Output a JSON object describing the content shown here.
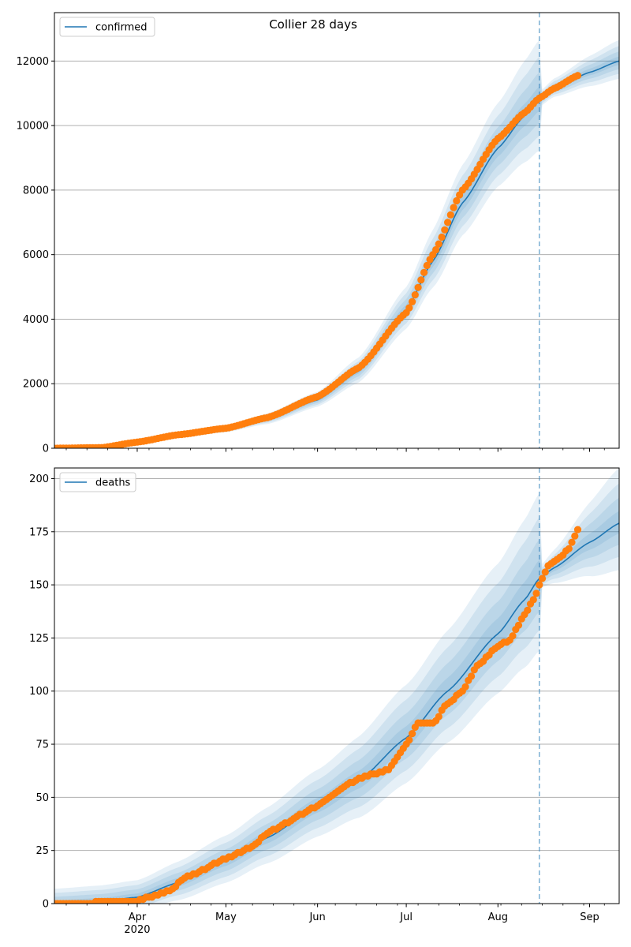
{
  "title": "Collier 28 days",
  "colors": {
    "model": "#1f77b4",
    "observed": "#ff7f0e",
    "band": "#1f77b4",
    "grid": "#b0b0b0",
    "cutoff": "#1f77b4"
  },
  "x_axis": {
    "start": "2020-03-04",
    "end": "2020-09-11",
    "month_ticks": [
      {
        "date": "2020-04-01",
        "label": "Apr",
        "sub": "2020"
      },
      {
        "date": "2020-05-01",
        "label": "May",
        "sub": ""
      },
      {
        "date": "2020-06-01",
        "label": "Jun",
        "sub": ""
      },
      {
        "date": "2020-07-01",
        "label": "Jul",
        "sub": ""
      },
      {
        "date": "2020-08-01",
        "label": "Aug",
        "sub": ""
      },
      {
        "date": "2020-09-01",
        "label": "Sep",
        "sub": ""
      }
    ]
  },
  "chart_data": [
    {
      "type": "line",
      "legend": "confirmed",
      "legend_position": "top-left",
      "grid": "horizontal",
      "ylim": [
        0,
        13500
      ],
      "yticks": [
        0,
        2000,
        4000,
        6000,
        8000,
        10000,
        12000
      ],
      "cutoff_date": "2020-08-15",
      "last_observed": "2020-08-28",
      "model_anchors": [
        [
          "2020-03-04",
          0
        ],
        [
          "2020-03-20",
          10
        ],
        [
          "2020-04-01",
          180
        ],
        [
          "2020-04-15",
          400
        ],
        [
          "2020-05-01",
          600
        ],
        [
          "2020-05-15",
          900
        ],
        [
          "2020-06-01",
          1500
        ],
        [
          "2020-06-15",
          2400
        ],
        [
          "2020-07-01",
          4300
        ],
        [
          "2020-07-10",
          5800
        ],
        [
          "2020-07-20",
          7600
        ],
        [
          "2020-08-01",
          9300
        ],
        [
          "2020-08-10",
          10300
        ],
        [
          "2020-08-15",
          10800
        ],
        [
          "2020-08-20",
          11150
        ],
        [
          "2020-09-01",
          11650
        ],
        [
          "2020-09-11",
          12000
        ]
      ],
      "observed_anchors": [
        [
          "2020-03-04",
          0
        ],
        [
          "2020-03-20",
          20
        ],
        [
          "2020-04-01",
          190
        ],
        [
          "2020-04-15",
          420
        ],
        [
          "2020-05-01",
          620
        ],
        [
          "2020-05-15",
          950
        ],
        [
          "2020-06-01",
          1600
        ],
        [
          "2020-06-15",
          2500
        ],
        [
          "2020-07-01",
          4200
        ],
        [
          "2020-07-10",
          6000
        ],
        [
          "2020-07-20",
          8000
        ],
        [
          "2020-08-01",
          9600
        ],
        [
          "2020-08-10",
          10400
        ],
        [
          "2020-08-15",
          10850
        ],
        [
          "2020-08-20",
          11150
        ],
        [
          "2020-08-28",
          11550
        ]
      ],
      "band_widths": [
        [
          "2020-03-04",
          50
        ],
        [
          "2020-04-01",
          80
        ],
        [
          "2020-05-01",
          120
        ],
        [
          "2020-06-01",
          250
        ],
        [
          "2020-06-15",
          420
        ],
        [
          "2020-07-01",
          700
        ],
        [
          "2020-07-15",
          1100
        ],
        [
          "2020-08-01",
          1400
        ],
        [
          "2020-08-15",
          1850
        ],
        [
          "2020-08-16",
          260
        ],
        [
          "2020-09-11",
          650
        ]
      ]
    },
    {
      "type": "line",
      "legend": "deaths",
      "legend_position": "top-left",
      "grid": "horizontal",
      "ylim": [
        0,
        205
      ],
      "yticks": [
        0,
        25,
        50,
        75,
        100,
        125,
        150,
        175,
        200
      ],
      "cutoff_date": "2020-08-15",
      "last_observed": "2020-08-28",
      "model_anchors": [
        [
          "2020-03-04",
          0
        ],
        [
          "2020-03-20",
          1
        ],
        [
          "2020-04-01",
          3
        ],
        [
          "2020-04-15",
          10
        ],
        [
          "2020-05-01",
          20
        ],
        [
          "2020-05-15",
          31
        ],
        [
          "2020-06-01",
          46
        ],
        [
          "2020-06-15",
          58
        ],
        [
          "2020-07-01",
          78
        ],
        [
          "2020-07-15",
          100
        ],
        [
          "2020-08-01",
          127
        ],
        [
          "2020-08-10",
          143
        ],
        [
          "2020-08-15",
          153
        ],
        [
          "2020-08-20",
          158
        ],
        [
          "2020-09-01",
          170
        ],
        [
          "2020-09-11",
          179
        ]
      ],
      "observed_anchors": [
        [
          "2020-03-04",
          0
        ],
        [
          "2020-03-31",
          1
        ],
        [
          "2020-04-10",
          5
        ],
        [
          "2020-04-20",
          14
        ],
        [
          "2020-05-01",
          21
        ],
        [
          "2020-05-10",
          27
        ],
        [
          "2020-05-15",
          33
        ],
        [
          "2020-05-20",
          37
        ],
        [
          "2020-06-01",
          46
        ],
        [
          "2020-06-04",
          49
        ],
        [
          "2020-06-10",
          55
        ],
        [
          "2020-06-15",
          59
        ],
        [
          "2020-06-25",
          63
        ],
        [
          "2020-07-01",
          75
        ],
        [
          "2020-07-05",
          85
        ],
        [
          "2020-07-10",
          85
        ],
        [
          "2020-07-15",
          94
        ],
        [
          "2020-07-20",
          100
        ],
        [
          "2020-07-25",
          112
        ],
        [
          "2020-08-01",
          121
        ],
        [
          "2020-08-05",
          124
        ],
        [
          "2020-08-10",
          136
        ],
        [
          "2020-08-13",
          143
        ],
        [
          "2020-08-16",
          153
        ],
        [
          "2020-08-18",
          159
        ],
        [
          "2020-08-22",
          163
        ],
        [
          "2020-08-25",
          167
        ],
        [
          "2020-08-28",
          176
        ]
      ],
      "band_widths": [
        [
          "2020-03-04",
          7
        ],
        [
          "2020-04-01",
          8
        ],
        [
          "2020-05-01",
          12
        ],
        [
          "2020-06-01",
          17
        ],
        [
          "2020-07-01",
          25
        ],
        [
          "2020-08-01",
          33
        ],
        [
          "2020-08-15",
          40
        ],
        [
          "2020-08-16",
          6
        ],
        [
          "2020-09-11",
          26
        ]
      ]
    }
  ]
}
